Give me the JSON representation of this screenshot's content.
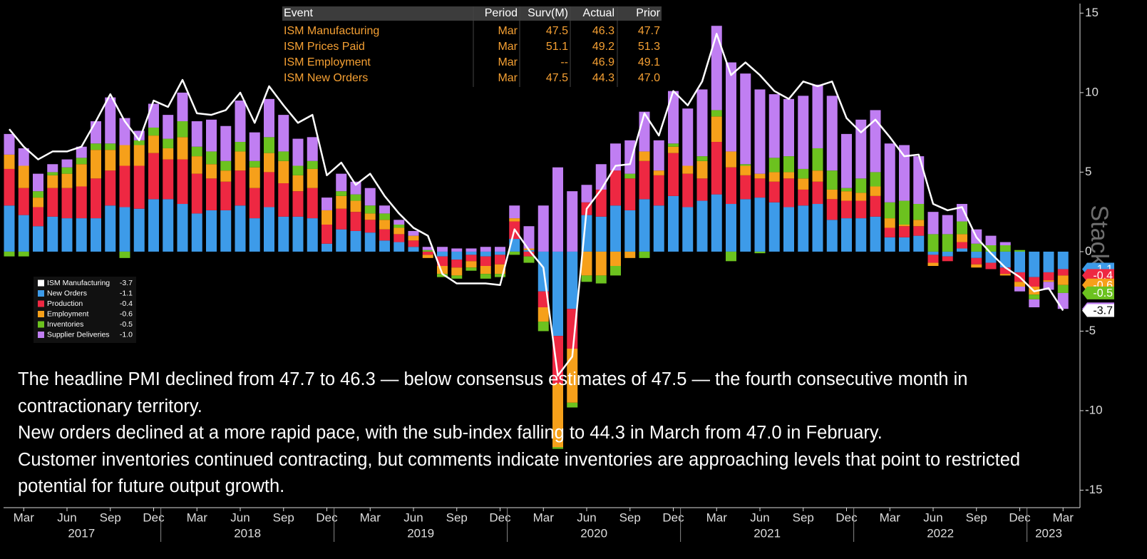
{
  "chart_data": {
    "type": "bar",
    "stacked": true,
    "watermark": "Stack",
    "x": [
      "2017-02",
      "2017-03",
      "2017-04",
      "2017-05",
      "2017-06",
      "2017-07",
      "2017-08",
      "2017-09",
      "2017-10",
      "2017-11",
      "2017-12",
      "2018-01",
      "2018-02",
      "2018-03",
      "2018-04",
      "2018-05",
      "2018-06",
      "2018-07",
      "2018-08",
      "2018-09",
      "2018-10",
      "2018-11",
      "2018-12",
      "2019-01",
      "2019-02",
      "2019-03",
      "2019-04",
      "2019-05",
      "2019-06",
      "2019-07",
      "2019-08",
      "2019-09",
      "2019-10",
      "2019-11",
      "2019-12",
      "2020-01",
      "2020-02",
      "2020-03",
      "2020-04",
      "2020-05",
      "2020-06",
      "2020-07",
      "2020-08",
      "2020-09",
      "2020-10",
      "2020-11",
      "2020-12",
      "2021-01",
      "2021-02",
      "2021-03",
      "2021-04",
      "2021-05",
      "2021-06",
      "2021-07",
      "2021-08",
      "2021-09",
      "2021-10",
      "2021-11",
      "2021-12",
      "2022-01",
      "2022-02",
      "2022-03",
      "2022-04",
      "2022-05",
      "2022-06",
      "2022-07",
      "2022-08",
      "2022-09",
      "2022-10",
      "2022-11",
      "2022-12",
      "2023-01",
      "2023-02",
      "2023-03"
    ],
    "series": [
      {
        "name": "ISM Manufacturing",
        "kind": "line",
        "color": "#ffffff",
        "values": [
          7.7,
          6.6,
          5.8,
          6.3,
          6.3,
          6.6,
          8.2,
          9.9,
          8.2,
          7.0,
          9.5,
          9.1,
          10.8,
          8.7,
          8.6,
          8.9,
          10.0,
          8.1,
          10.4,
          9.2,
          8.1,
          8.6,
          4.8,
          5.6,
          4.2,
          4.9,
          3.5,
          2.4,
          1.5,
          1.0,
          -1.4,
          -2.0,
          -2.0,
          -2.0,
          -2.1,
          1.4,
          0.1,
          -1.0,
          -7.8,
          -6.6,
          2.7,
          3.9,
          5.4,
          5.5,
          8.7,
          7.3,
          10.1,
          9.2,
          10.7,
          13.7,
          11.1,
          11.9,
          11.1,
          10.1,
          9.6,
          10.7,
          10.4,
          10.7,
          8.4,
          7.5,
          8.3,
          7.2,
          6.0,
          6.1,
          3.0,
          2.6,
          2.8,
          0.9,
          -0.1,
          -1.0,
          -1.6,
          -2.5,
          -2.3,
          -3.7
        ]
      },
      {
        "name": "New Orders",
        "color": "#3d9be9",
        "values": [
          2.9,
          2.3,
          1.6,
          2.2,
          2.1,
          2.1,
          2.1,
          2.9,
          2.8,
          2.7,
          3.3,
          3.3,
          3.0,
          2.4,
          2.6,
          2.6,
          2.9,
          2.1,
          2.8,
          2.2,
          2.2,
          2.1,
          0.5,
          1.4,
          1.3,
          1.2,
          0.7,
          0.6,
          0.3,
          0.0,
          -0.3,
          -0.5,
          -0.2,
          -0.3,
          -0.2,
          0.8,
          0.1,
          -2.5,
          -5.3,
          -3.6,
          2.3,
          2.2,
          2.9,
          2.6,
          3.3,
          2.9,
          3.5,
          2.8,
          3.2,
          3.6,
          3.0,
          3.3,
          3.4,
          3.1,
          2.8,
          2.9,
          3.0,
          2.0,
          2.1,
          2.1,
          2.2,
          0.9,
          0.9,
          1.0,
          -0.2,
          -0.3,
          0.2,
          -0.4,
          -0.7,
          -1.0,
          -1.3,
          -1.6,
          -1.3,
          -1.1
        ]
      },
      {
        "name": "Production",
        "color": "#ee2842",
        "values": [
          2.3,
          1.7,
          1.2,
          1.8,
          1.9,
          2.0,
          2.5,
          2.2,
          2.6,
          2.7,
          2.9,
          2.5,
          2.8,
          2.5,
          2.0,
          1.8,
          2.2,
          1.9,
          2.2,
          2.1,
          1.6,
          1.9,
          1.2,
          1.3,
          1.2,
          0.8,
          0.7,
          0.5,
          0.4,
          -0.2,
          -0.6,
          -0.5,
          -0.4,
          -0.6,
          -0.6,
          1.1,
          -0.3,
          -1.0,
          -3.0,
          -2.5,
          0.8,
          1.7,
          2.2,
          2.0,
          2.4,
          1.9,
          2.7,
          2.1,
          1.4,
          3.3,
          2.3,
          1.5,
          1.2,
          1.3,
          1.8,
          1.0,
          1.4,
          1.3,
          1.1,
          1.1,
          1.3,
          0.6,
          0.7,
          0.6,
          -0.5,
          -0.3,
          0.4,
          -0.4,
          -0.4,
          -0.4,
          -0.6,
          -0.6,
          -0.5,
          -0.4
        ]
      },
      {
        "name": "Employment",
        "color": "#f6a01a",
        "values": [
          0.9,
          1.4,
          0.6,
          0.8,
          0.9,
          1.4,
          1.8,
          1.3,
          1.3,
          1.3,
          1.1,
          0.7,
          1.4,
          1.1,
          0.9,
          0.7,
          1.2,
          1.3,
          1.2,
          1.4,
          1.0,
          1.2,
          0.9,
          0.8,
          0.7,
          0.4,
          0.6,
          0.4,
          0.3,
          -0.2,
          -0.5,
          -0.5,
          -0.4,
          -0.5,
          -0.6,
          0.2,
          0.1,
          -0.9,
          -4.0,
          -3.4,
          -1.5,
          -1.5,
          -0.9,
          -0.4,
          0.6,
          0.3,
          0.4,
          0.5,
          1.1,
          1.6,
          1.0,
          0.6,
          0.3,
          0.6,
          0.4,
          0.7,
          0.7,
          0.6,
          0.6,
          0.5,
          0.6,
          0.6,
          0.1,
          0.4,
          -0.2,
          0.0,
          0.5,
          -0.2,
          0.0,
          -0.1,
          -0.3,
          -0.5,
          -0.1,
          -0.6
        ]
      },
      {
        "name": "Inventories",
        "color": "#6cc21f",
        "values": [
          -0.3,
          -0.3,
          0.4,
          0.2,
          0.4,
          0.4,
          0.4,
          0.4,
          -0.4,
          0.3,
          0.5,
          0.6,
          1.0,
          0.6,
          0.8,
          0.6,
          0.6,
          0.4,
          1.0,
          0.6,
          0.6,
          0.5,
          0.0,
          0.3,
          0.4,
          0.5,
          0.4,
          0.2,
          0.0,
          0.1,
          -0.2,
          -0.2,
          -0.2,
          -0.3,
          -0.2,
          -0.2,
          -0.4,
          -0.6,
          -0.1,
          -0.3,
          -0.4,
          -0.5,
          -0.6,
          0.3,
          -0.4,
          0.0,
          0.2,
          0.0,
          0.3,
          0.4,
          -0.6,
          0.1,
          -0.1,
          0.9,
          1.0,
          0.6,
          1.4,
          1.2,
          0.2,
          0.9,
          0.9,
          1.0,
          1.5,
          1.0,
          1.1,
          1.1,
          0.8,
          0.5,
          0.4,
          0.4,
          0.1,
          -0.3,
          0.0,
          -0.5
        ]
      },
      {
        "name": "Supplier Deliveries",
        "color": "#c07ef2",
        "values": [
          1.3,
          1.1,
          1.1,
          0.5,
          0.5,
          0.7,
          1.4,
          2.9,
          1.7,
          0.6,
          1.5,
          1.5,
          1.8,
          1.6,
          2.0,
          2.2,
          2.6,
          1.8,
          2.4,
          2.3,
          1.7,
          1.5,
          0.8,
          1.1,
          0.8,
          1.1,
          0.5,
          0.3,
          0.3,
          0.2,
          0.3,
          0.2,
          0.2,
          0.3,
          0.3,
          0.8,
          1.4,
          2.9,
          5.3,
          3.8,
          1.1,
          1.6,
          1.7,
          2.1,
          2.5,
          1.9,
          3.3,
          3.6,
          4.2,
          5.3,
          5.6,
          5.7,
          5.3,
          4.0,
          3.6,
          4.6,
          4.0,
          4.7,
          3.4,
          3.7,
          3.9,
          3.7,
          3.5,
          3.0,
          1.4,
          1.2,
          1.1,
          0.9,
          0.6,
          0.2,
          -0.3,
          -0.5,
          -0.5,
          -1.0
        ]
      }
    ],
    "legend": {
      "values": [
        "-3.7",
        "-1.1",
        "-0.4",
        "-0.6",
        "-0.5",
        "-1.0"
      ]
    },
    "ylim": [
      -16.1,
      15.6
    ],
    "yticks": [
      -15,
      -10,
      -5,
      0,
      5,
      10,
      15
    ],
    "xticks": [
      {
        "value": "2017-03",
        "label": "Mar"
      },
      {
        "value": "2017-06",
        "label": "Jun"
      },
      {
        "value": "2017-09",
        "label": "Sep"
      },
      {
        "value": "2017-12",
        "label": "Dec"
      },
      {
        "value": "2018-03",
        "label": "Mar"
      },
      {
        "value": "2018-06",
        "label": "Jun"
      },
      {
        "value": "2018-09",
        "label": "Sep"
      },
      {
        "value": "2018-12",
        "label": "Dec"
      },
      {
        "value": "2019-03",
        "label": "Mar"
      },
      {
        "value": "2019-06",
        "label": "Jun"
      },
      {
        "value": "2019-09",
        "label": "Sep"
      },
      {
        "value": "2019-12",
        "label": "Dec"
      },
      {
        "value": "2020-03",
        "label": "Mar"
      },
      {
        "value": "2020-06",
        "label": "Jun"
      },
      {
        "value": "2020-09",
        "label": "Sep"
      },
      {
        "value": "2020-12",
        "label": "Dec"
      },
      {
        "value": "2021-03",
        "label": "Mar"
      },
      {
        "value": "2021-06",
        "label": "Jun"
      },
      {
        "value": "2021-09",
        "label": "Sep"
      },
      {
        "value": "2021-12",
        "label": "Dec"
      },
      {
        "value": "2022-03",
        "label": "Mar"
      },
      {
        "value": "2022-06",
        "label": "Jun"
      },
      {
        "value": "2022-09",
        "label": "Sep"
      },
      {
        "value": "2022-12",
        "label": "Dec"
      },
      {
        "value": "2023-03",
        "label": "Mar"
      }
    ],
    "years": [
      "2017",
      "2018",
      "2019",
      "2020",
      "2021",
      "2022",
      "2023"
    ],
    "table": {
      "columns": [
        "Event",
        "Period",
        "Surv(M)",
        "Actual",
        "Prior"
      ],
      "rows": [
        [
          "ISM Manufacturing",
          "Mar",
          "47.5",
          "46.3",
          "47.7"
        ],
        [
          "ISM Prices Paid",
          "Mar",
          "51.1",
          "49.2",
          "51.3"
        ],
        [
          "ISM Employment",
          "Mar",
          "--",
          "46.9",
          "49.1"
        ],
        [
          "ISM New Orders",
          "Mar",
          "47.5",
          "44.3",
          "47.0"
        ]
      ]
    },
    "annotations": [
      "The headline PMI declined from 47.7 to 46.3 — below consensus estimates of 47.5 — the fourth consecutive month in contractionary territory.",
      "New orders declined at a more rapid pace, with the sub-index falling to 44.3 in March from 47.0 in February.",
      "Customer inventories continued contracting, but comments indicate inventories are approaching levels that point to restricted potential for future output growth."
    ]
  }
}
